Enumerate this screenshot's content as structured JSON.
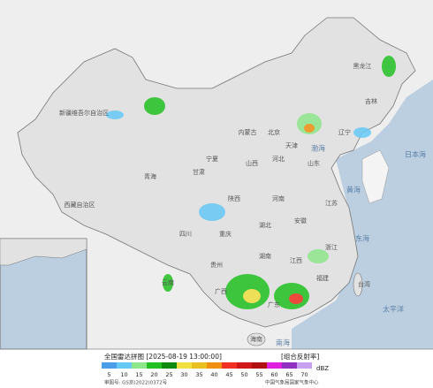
{
  "map": {
    "labels": [
      "新疆维吾尔自治区",
      "西藏自治区",
      "青海",
      "甘肃",
      "内蒙古",
      "黑龙江",
      "吉林",
      "辽宁",
      "北京",
      "天津",
      "河北",
      "山西",
      "山东",
      "宁夏",
      "陕西",
      "河南",
      "四川",
      "重庆",
      "湖北",
      "安徽",
      "江苏",
      "贵州",
      "湖南",
      "江西",
      "浙江",
      "云南",
      "广西",
      "广东",
      "福建",
      "台湾",
      "海南",
      "渤海",
      "黄海",
      "东海",
      "南海",
      "太平洋",
      "日本海"
    ]
  },
  "legend": {
    "title": "全国雷达拼图 [2025-08-19 13:00:00]",
    "product": "[组合反射率]",
    "unit": "dBZ",
    "levels": [
      5,
      10,
      15,
      20,
      25,
      30,
      35,
      40,
      45,
      50,
      55,
      60,
      65,
      70
    ],
    "colors": [
      "#4a9ee8",
      "#66c8f5",
      "#8ee68a",
      "#22c022",
      "#0f8a0f",
      "#f0e040",
      "#e8c020",
      "#f09010",
      "#f03020",
      "#d01818",
      "#b01010",
      "#e020e0",
      "#9030c0",
      "#c8a0f0"
    ]
  },
  "footer": {
    "approval": "审图号: GS京(2022)0372号",
    "agency": "中国气象局国家气象中心"
  }
}
